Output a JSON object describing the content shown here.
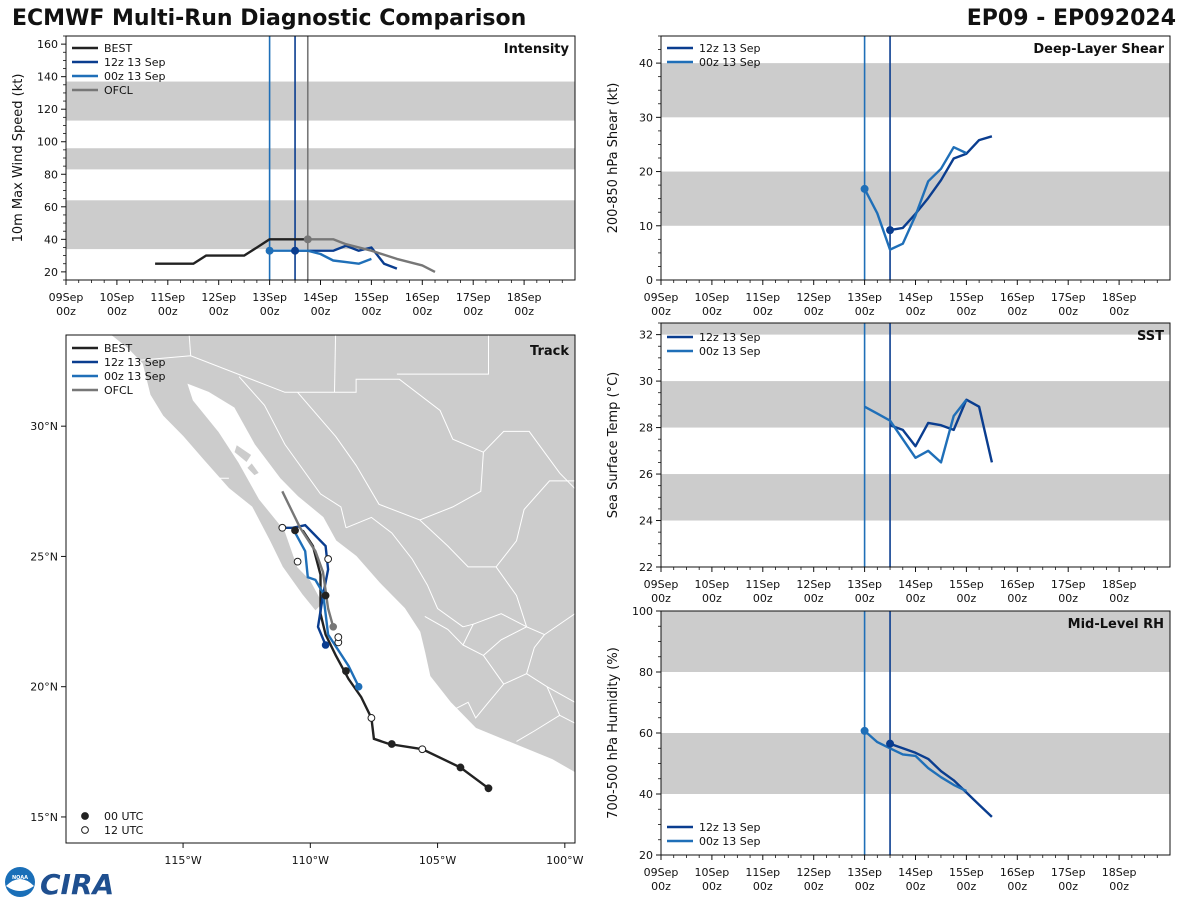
{
  "header": {
    "title": "ECMWF Multi-Run Diagnostic Comparison",
    "storm_id": "EP09 - EP092024"
  },
  "colors": {
    "best": "#222222",
    "run12z": "#0a3d8f",
    "run00z": "#1f6fb8",
    "ofcl": "#777777",
    "shade": "#cccccc",
    "land": "#cccccc",
    "border": "#ffffff"
  },
  "time_axis": {
    "tick_values": [
      0,
      1,
      2,
      3,
      4,
      5,
      6,
      7,
      8,
      9
    ],
    "tick_day_labels": [
      "09Sep",
      "10Sep",
      "11Sep",
      "12Sep",
      "13Sep",
      "14Sep",
      "15Sep",
      "16Sep",
      "17Sep",
      "18Sep"
    ],
    "tick_hour_label": "00z",
    "xlim": [
      0,
      10
    ]
  },
  "chart_data": [
    {
      "id": "intensity",
      "type": "line",
      "title": "Intensity",
      "ylabel": "10m Max Wind Speed (kt)",
      "ylim": [
        15,
        165
      ],
      "yticks": [
        20,
        40,
        60,
        80,
        100,
        120,
        140,
        160
      ],
      "shaded_bands": [
        [
          34,
          64
        ],
        [
          83,
          96
        ],
        [
          113,
          137
        ]
      ],
      "vlines": [
        {
          "x": 4.0,
          "series": "run00z"
        },
        {
          "x": 4.5,
          "series": "run12z"
        },
        {
          "x": 4.75,
          "series": "ofcl"
        }
      ],
      "legend": {
        "position": "top-left",
        "entries": [
          {
            "label": "BEST",
            "series": "best"
          },
          {
            "label": "12z 13 Sep",
            "series": "run12z"
          },
          {
            "label": "00z 13 Sep",
            "series": "run00z"
          },
          {
            "label": "OFCL",
            "series": "ofcl"
          }
        ]
      },
      "series": [
        {
          "name": "BEST",
          "key": "best",
          "x": [
            1.75,
            2.0,
            2.25,
            2.5,
            2.75,
            3.0,
            3.25,
            3.5,
            3.75,
            4.0,
            4.25,
            4.5,
            4.75
          ],
          "y": [
            25,
            25,
            25,
            25,
            30,
            30,
            30,
            30,
            35,
            40,
            40,
            40,
            40
          ]
        },
        {
          "name": "12z 13 Sep",
          "key": "run12z",
          "x": [
            4.5,
            4.75,
            5.0,
            5.25,
            5.5,
            5.75,
            6.0,
            6.25,
            6.5
          ],
          "y": [
            33,
            33,
            33,
            33,
            36,
            33,
            35,
            25,
            22
          ]
        },
        {
          "name": "00z 13 Sep",
          "key": "run00z",
          "x": [
            4.0,
            4.25,
            4.5,
            4.75,
            5.0,
            5.25,
            5.5,
            5.75,
            6.0
          ],
          "y": [
            33,
            33,
            33,
            33,
            31,
            27,
            26,
            25,
            28
          ]
        },
        {
          "name": "OFCL",
          "key": "ofcl",
          "x": [
            4.75,
            5.0,
            5.25,
            5.5,
            6.0,
            6.5,
            7.0,
            7.25
          ],
          "y": [
            40,
            40,
            40,
            37,
            33,
            28,
            24,
            20
          ]
        }
      ],
      "markers": [
        {
          "series": "run00z",
          "x": 4.0,
          "y": 33
        },
        {
          "series": "run12z",
          "x": 4.5,
          "y": 33
        },
        {
          "series": "ofcl",
          "x": 4.75,
          "y": 40
        }
      ]
    },
    {
      "id": "shear",
      "type": "line",
      "title": "Deep-Layer Shear",
      "ylabel": "200-850 hPa Shear (kt)",
      "ylim": [
        0,
        45
      ],
      "yticks": [
        0,
        10,
        20,
        30,
        40
      ],
      "shaded_bands": [
        [
          10,
          20
        ],
        [
          30,
          40
        ]
      ],
      "vlines": [
        {
          "x": 4.0,
          "series": "run00z"
        },
        {
          "x": 4.5,
          "series": "run12z"
        }
      ],
      "legend": {
        "position": "top-left",
        "entries": [
          {
            "label": "12z 13 Sep",
            "series": "run12z"
          },
          {
            "label": "00z 13 Sep",
            "series": "run00z"
          }
        ]
      },
      "series": [
        {
          "name": "12z 13 Sep",
          "key": "run12z",
          "x": [
            4.5,
            4.75,
            5.0,
            5.25,
            5.5,
            5.75,
            6.0,
            6.25,
            6.5
          ],
          "y": [
            9.2,
            9.6,
            12.2,
            15.1,
            18.4,
            22.4,
            23.3,
            25.8,
            26.5
          ]
        },
        {
          "name": "00z 13 Sep",
          "key": "run00z",
          "x": [
            4.0,
            4.25,
            4.5,
            4.75,
            5.0,
            5.25,
            5.5,
            5.75,
            6.0
          ],
          "y": [
            16.8,
            12.3,
            5.6,
            6.7,
            11.9,
            18.2,
            20.5,
            24.5,
            23.4
          ]
        }
      ],
      "markers": [
        {
          "series": "run00z",
          "x": 4.0,
          "y": 16.8
        },
        {
          "series": "run12z",
          "x": 4.5,
          "y": 9.2
        }
      ]
    },
    {
      "id": "sst",
      "type": "line",
      "title": "SST",
      "ylabel": "Sea Surface Temp (°C)",
      "ylim": [
        22,
        32.5
      ],
      "yticks": [
        22,
        24,
        26,
        28,
        30,
        32
      ],
      "shaded_bands": [
        [
          24,
          26
        ],
        [
          28,
          30
        ],
        [
          32,
          33
        ]
      ],
      "vlines": [
        {
          "x": 4.0,
          "series": "run00z"
        },
        {
          "x": 4.5,
          "series": "run12z"
        }
      ],
      "legend": {
        "position": "top-left",
        "entries": [
          {
            "label": "12z 13 Sep",
            "series": "run12z"
          },
          {
            "label": "00z 13 Sep",
            "series": "run00z"
          }
        ]
      },
      "series": [
        {
          "name": "12z 13 Sep",
          "key": "run12z",
          "x": [
            4.5,
            4.75,
            5.0,
            5.25,
            5.5,
            5.75,
            6.0,
            6.25,
            6.5
          ],
          "y": [
            28.1,
            27.9,
            27.2,
            28.2,
            28.1,
            27.9,
            29.2,
            28.9,
            26.5
          ]
        },
        {
          "name": "00z 13 Sep",
          "key": "run00z",
          "x": [
            4.0,
            4.25,
            4.5,
            4.75,
            5.0,
            5.25,
            5.5,
            5.75,
            6.0
          ],
          "y": [
            28.9,
            28.6,
            28.3,
            27.5,
            26.7,
            27.0,
            26.5,
            28.5,
            29.2
          ]
        }
      ],
      "markers": []
    },
    {
      "id": "rh",
      "type": "line",
      "title": "Mid-Level RH",
      "ylabel": "700-500 hPa Humidity (%)",
      "ylim": [
        20,
        100
      ],
      "yticks": [
        20,
        40,
        60,
        80,
        100
      ],
      "shaded_bands": [
        [
          40,
          60
        ],
        [
          80,
          100
        ]
      ],
      "vlines": [
        {
          "x": 4.0,
          "series": "run00z"
        },
        {
          "x": 4.5,
          "series": "run12z"
        }
      ],
      "legend": {
        "position": "bottom-left",
        "entries": [
          {
            "label": "12z 13 Sep",
            "series": "run12z"
          },
          {
            "label": "00z 13 Sep",
            "series": "run00z"
          }
        ]
      },
      "series": [
        {
          "name": "12z 13 Sep",
          "key": "run12z",
          "x": [
            4.5,
            4.75,
            5.0,
            5.25,
            5.5,
            5.75,
            6.0,
            6.25,
            6.5
          ],
          "y": [
            56.5,
            55,
            53.5,
            51.5,
            47.5,
            44.5,
            40.5,
            36.5,
            32.5
          ]
        },
        {
          "name": "00z 13 Sep",
          "key": "run00z",
          "x": [
            4.0,
            4.25,
            4.5,
            4.75,
            5.0,
            5.25,
            5.5,
            5.75,
            6.0
          ],
          "y": [
            60.7,
            57,
            55,
            53,
            52.5,
            48.5,
            45.5,
            43,
            41
          ]
        }
      ],
      "markers": [
        {
          "series": "run00z",
          "x": 4.0,
          "y": 60.7
        },
        {
          "series": "run12z",
          "x": 4.5,
          "y": 56.5
        }
      ]
    },
    {
      "id": "track",
      "type": "scatter",
      "title": "Track",
      "lon_range": [
        -119.6,
        -99.6
      ],
      "lat_range": [
        14.0,
        33.5
      ],
      "lon_ticks": [
        -115,
        -110,
        -105,
        -100
      ],
      "lon_tick_labels": [
        "115°W",
        "110°W",
        "105°W",
        "100°W"
      ],
      "lat_ticks": [
        15,
        20,
        25,
        30
      ],
      "lat_tick_labels": [
        "15°N",
        "20°N",
        "25°N",
        "30°N"
      ],
      "legend": {
        "position": "top-left",
        "entries": [
          {
            "label": "BEST",
            "series": "best"
          },
          {
            "label": "12z 13 Sep",
            "series": "run12z"
          },
          {
            "label": "00z 13 Sep",
            "series": "run00z"
          },
          {
            "label": "OFCL",
            "series": "ofcl"
          }
        ]
      },
      "marker_legend": {
        "position": "bottom-left",
        "entries": [
          {
            "label": "00 UTC",
            "fill": "filled"
          },
          {
            "label": "12 UTC",
            "fill": "open"
          }
        ]
      },
      "series": [
        {
          "name": "BEST",
          "key": "best",
          "points": [
            [
              -103.0,
              16.1
            ],
            [
              -104.1,
              16.9
            ],
            [
              -105.6,
              17.6
            ],
            [
              -106.9,
              17.8
            ],
            [
              -107.5,
              18.0
            ],
            [
              -107.6,
              18.8
            ],
            [
              -108.0,
              19.6
            ],
            [
              -108.5,
              20.3
            ],
            [
              -109.0,
              21.2
            ],
            [
              -109.4,
              22.0
            ],
            [
              -109.6,
              22.8
            ],
            [
              -109.6,
              23.5
            ],
            [
              -109.6,
              24.3
            ],
            [
              -109.9,
              25.4
            ],
            [
              -110.3,
              26.0
            ]
          ]
        },
        {
          "name": "12z 13 Sep",
          "key": "run12z",
          "points": [
            [
              -109.4,
              21.6
            ],
            [
              -109.7,
              22.3
            ],
            [
              -109.5,
              23.5
            ],
            [
              -109.3,
              24.5
            ],
            [
              -109.4,
              25.4
            ],
            [
              -110.0,
              26.0
            ],
            [
              -110.2,
              26.2
            ],
            [
              -110.7,
              26.1
            ],
            [
              -111.1,
              26.1
            ]
          ]
        },
        {
          "name": "00z 13 Sep",
          "key": "run00z",
          "points": [
            [
              -108.1,
              20.0
            ],
            [
              -108.5,
              20.8
            ],
            [
              -108.9,
              21.4
            ],
            [
              -109.3,
              22.0
            ],
            [
              -109.4,
              22.8
            ],
            [
              -109.5,
              23.6
            ],
            [
              -109.8,
              24.1
            ],
            [
              -110.1,
              24.2
            ],
            [
              -110.2,
              25.2
            ],
            [
              -110.7,
              26.1
            ]
          ]
        },
        {
          "name": "OFCL",
          "key": "ofcl",
          "points": [
            [
              -109.1,
              22.3
            ],
            [
              -109.3,
              23.0
            ],
            [
              -109.5,
              24.4
            ],
            [
              -109.8,
              25.2
            ],
            [
              -110.4,
              26.1
            ],
            [
              -111.1,
              27.5
            ]
          ]
        }
      ],
      "position_markers": [
        {
          "lon": -103.0,
          "lat": 16.1,
          "fill": "filled"
        },
        {
          "lon": -104.1,
          "lat": 16.9,
          "fill": "filled"
        },
        {
          "lon": -105.6,
          "lat": 17.6,
          "fill": "open"
        },
        {
          "lon": -106.8,
          "lat": 17.8,
          "fill": "filled"
        },
        {
          "lon": -107.6,
          "lat": 18.8,
          "fill": "open"
        },
        {
          "lon": -108.6,
          "lat": 20.6,
          "fill": "filled"
        },
        {
          "lon": -108.9,
          "lat": 21.7,
          "fill": "open"
        },
        {
          "lon": -108.9,
          "lat": 21.9,
          "fill": "open"
        },
        {
          "lon": -109.4,
          "lat": 23.5,
          "fill": "filled"
        },
        {
          "lon": -109.3,
          "lat": 24.9,
          "fill": "open"
        },
        {
          "lon": -110.5,
          "lat": 24.8,
          "fill": "open"
        },
        {
          "lon": -110.6,
          "lat": 26.0,
          "fill": "filled"
        },
        {
          "lon": -111.1,
          "lat": 26.1,
          "fill": "open"
        }
      ],
      "colored_markers": [
        {
          "series": "run12z",
          "lon": -109.4,
          "lat": 21.6
        },
        {
          "series": "run00z",
          "lon": -108.1,
          "lat": 20.0
        },
        {
          "series": "ofcl",
          "lon": -109.1,
          "lat": 22.3
        }
      ]
    }
  ],
  "logo": {
    "text": "CIRA",
    "seal_text": "NOAA"
  }
}
